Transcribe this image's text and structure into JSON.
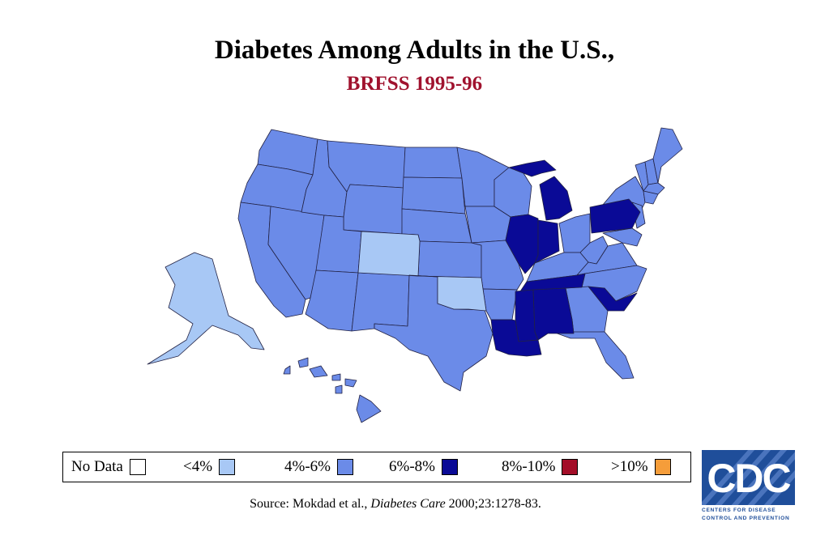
{
  "title": "Diabetes Among Adults in the U.S.,",
  "subtitle": "BRFSS 1995-96",
  "colors": {
    "subtitle": "#a0122e",
    "no_data": "#ffffff",
    "lt4": "#a8c8f5",
    "4to6": "#6b8be8",
    "6to8": "#0a0a96",
    "8to10": "#a30d28",
    "gt10": "#f59d3a"
  },
  "legend": [
    {
      "label": "No Data",
      "color": "#ffffff"
    },
    {
      "label": "<4%",
      "color": "#a8c8f5"
    },
    {
      "label": "4%-6%",
      "color": "#6b8be8"
    },
    {
      "label": "6%-8%",
      "color": "#0a0a96"
    },
    {
      "label": "8%-10%",
      "color": "#a30d28"
    },
    {
      "label": ">10%",
      "color": "#f59d3a"
    }
  ],
  "map_categories": {
    "lt4": [
      "Alaska",
      "Colorado",
      "Oklahoma"
    ],
    "6to8": [
      "Michigan",
      "Illinois",
      "Indiana",
      "Pennsylvania",
      "Tennessee",
      "Mississippi",
      "Alabama",
      "Louisiana",
      "South Carolina"
    ],
    "4to6": [
      "all other states"
    ]
  },
  "source": {
    "prefix": "Source: Mokdad et al., ",
    "journal": "Diabetes Care",
    "suffix": " 2000;23:1278-83."
  },
  "logo": {
    "letters": "CDC",
    "line1": "CENTERS FOR DISEASE",
    "line2": "CONTROL AND PREVENTION"
  }
}
